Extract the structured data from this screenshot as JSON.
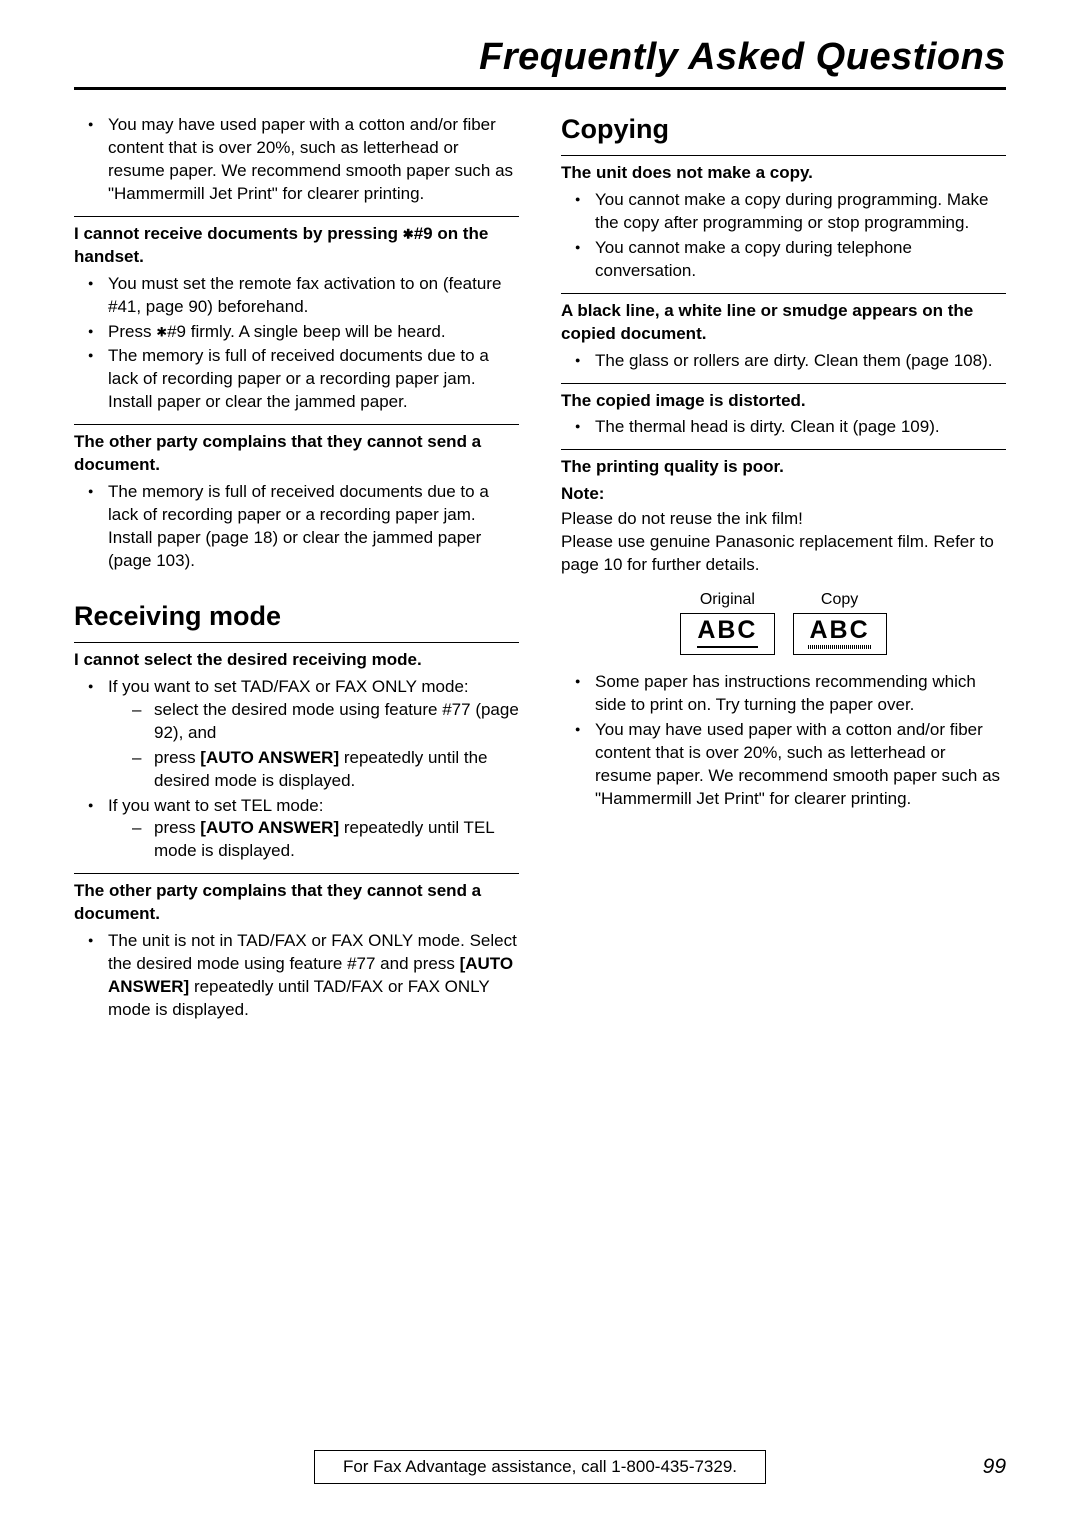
{
  "header": {
    "title": "Frequently Asked Questions"
  },
  "col1": {
    "intro_bullet": "You may have used paper with a cotton and/or fiber content that is over 20%, such as letterhead or resume paper. We recommend smooth paper such as \"Hammermill Jet Print\" for clearer printing.",
    "q1_pre": "I cannot receive documents by pressing ",
    "q1_star": "✱",
    "q1_post": "#9 on the handset.",
    "q1_b1": "You must set the remote fax activation to on (feature #41, page 90) beforehand.",
    "q1_b2_pre": "Press ",
    "q1_b2_star": "✱",
    "q1_b2_post": "#9 firmly. A single beep will be heard.",
    "q1_b3": "The memory is full of received documents due to a lack of recording paper or a recording paper jam. Install paper or clear the jammed paper.",
    "q2": "The other party complains that they cannot send a document.",
    "q2_b1": "The memory is full of received documents due to a lack of recording paper or a recording paper jam. Install paper (page 18) or clear the jammed paper (page 103).",
    "sec1": "Receiving mode",
    "q3": "I cannot select the desired receiving mode.",
    "q3_b1": "If you want to set TAD/FAX or FAX ONLY mode:",
    "q3_b1_d1": "select the desired mode using feature #77 (page 92), and",
    "q3_b1_d2_pre": "press ",
    "q3_b1_d2_btn": "[AUTO ANSWER]",
    "q3_b1_d2_post": " repeatedly until the desired mode is displayed.",
    "q3_b2": "If you want to set TEL mode:",
    "q3_b2_d1_pre": "press ",
    "q3_b2_d1_btn": "[AUTO ANSWER]",
    "q3_b2_d1_post": " repeatedly until TEL mode is displayed.",
    "q4": "The other party complains that they cannot send a document.",
    "q4_b1_pre": "The unit is not in TAD/FAX or FAX ONLY mode. Select the desired mode using feature #77 and press ",
    "q4_b1_btn": "[AUTO ANSWER]",
    "q4_b1_post": " repeatedly until TAD/FAX or FAX ONLY mode is displayed."
  },
  "col2": {
    "sec2": "Copying",
    "q5": "The unit does not make a copy.",
    "q5_b1": "You cannot make a copy during programming. Make the copy after programming or stop programming.",
    "q5_b2": "You cannot make a copy during telephone conversation.",
    "q6": "A black line, a white line or smudge appears on the copied document.",
    "q6_b1": "The glass or rollers are dirty. Clean them (page 108).",
    "q7": "The copied image is distorted.",
    "q7_b1": "The thermal head is dirty. Clean it (page 109).",
    "q8": "The printing quality is poor.",
    "note_label": "Note:",
    "note_body1": "Please do not reuse the ink film!",
    "note_body2": "Please use genuine Panasonic replacement film. Refer to page 10 for further details.",
    "diag_original": "Original",
    "diag_copy": "Copy",
    "abc": "ABC",
    "q8_b1": "Some paper has instructions recommending which side to print on. Try turning the paper over.",
    "q8_b2": "You may have used paper with a cotton and/or fiber content that is over 20%, such as letterhead or resume paper. We recommend smooth paper such as \"Hammermill Jet Print\" for clearer printing."
  },
  "footer": {
    "box": "For Fax Advantage assistance, call 1-800-435-7329.",
    "page": "99"
  }
}
